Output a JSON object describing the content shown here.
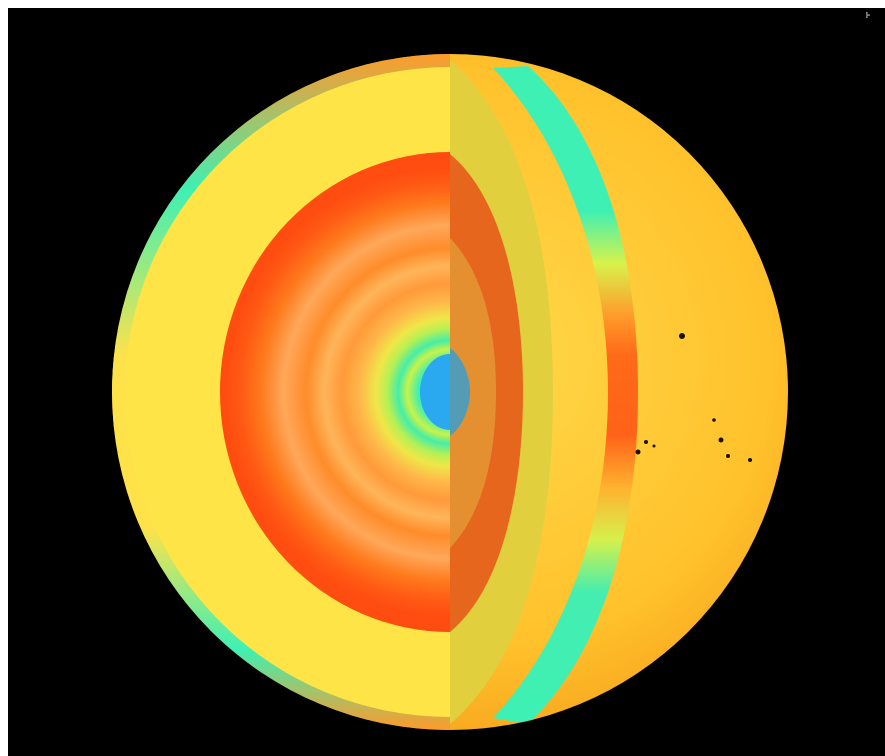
{
  "image": {
    "subject": "sun-interior-cutaway",
    "corner_mark": "⹐"
  },
  "colors": {
    "background": "#000000",
    "photosphere": "#ffc12e",
    "convection_zone": "#ffe24a",
    "radiative_hot": "#ff5a14",
    "cool_band": "#3ef0b4",
    "core": "#2aa9f0",
    "sunspot": "#1a1208"
  }
}
